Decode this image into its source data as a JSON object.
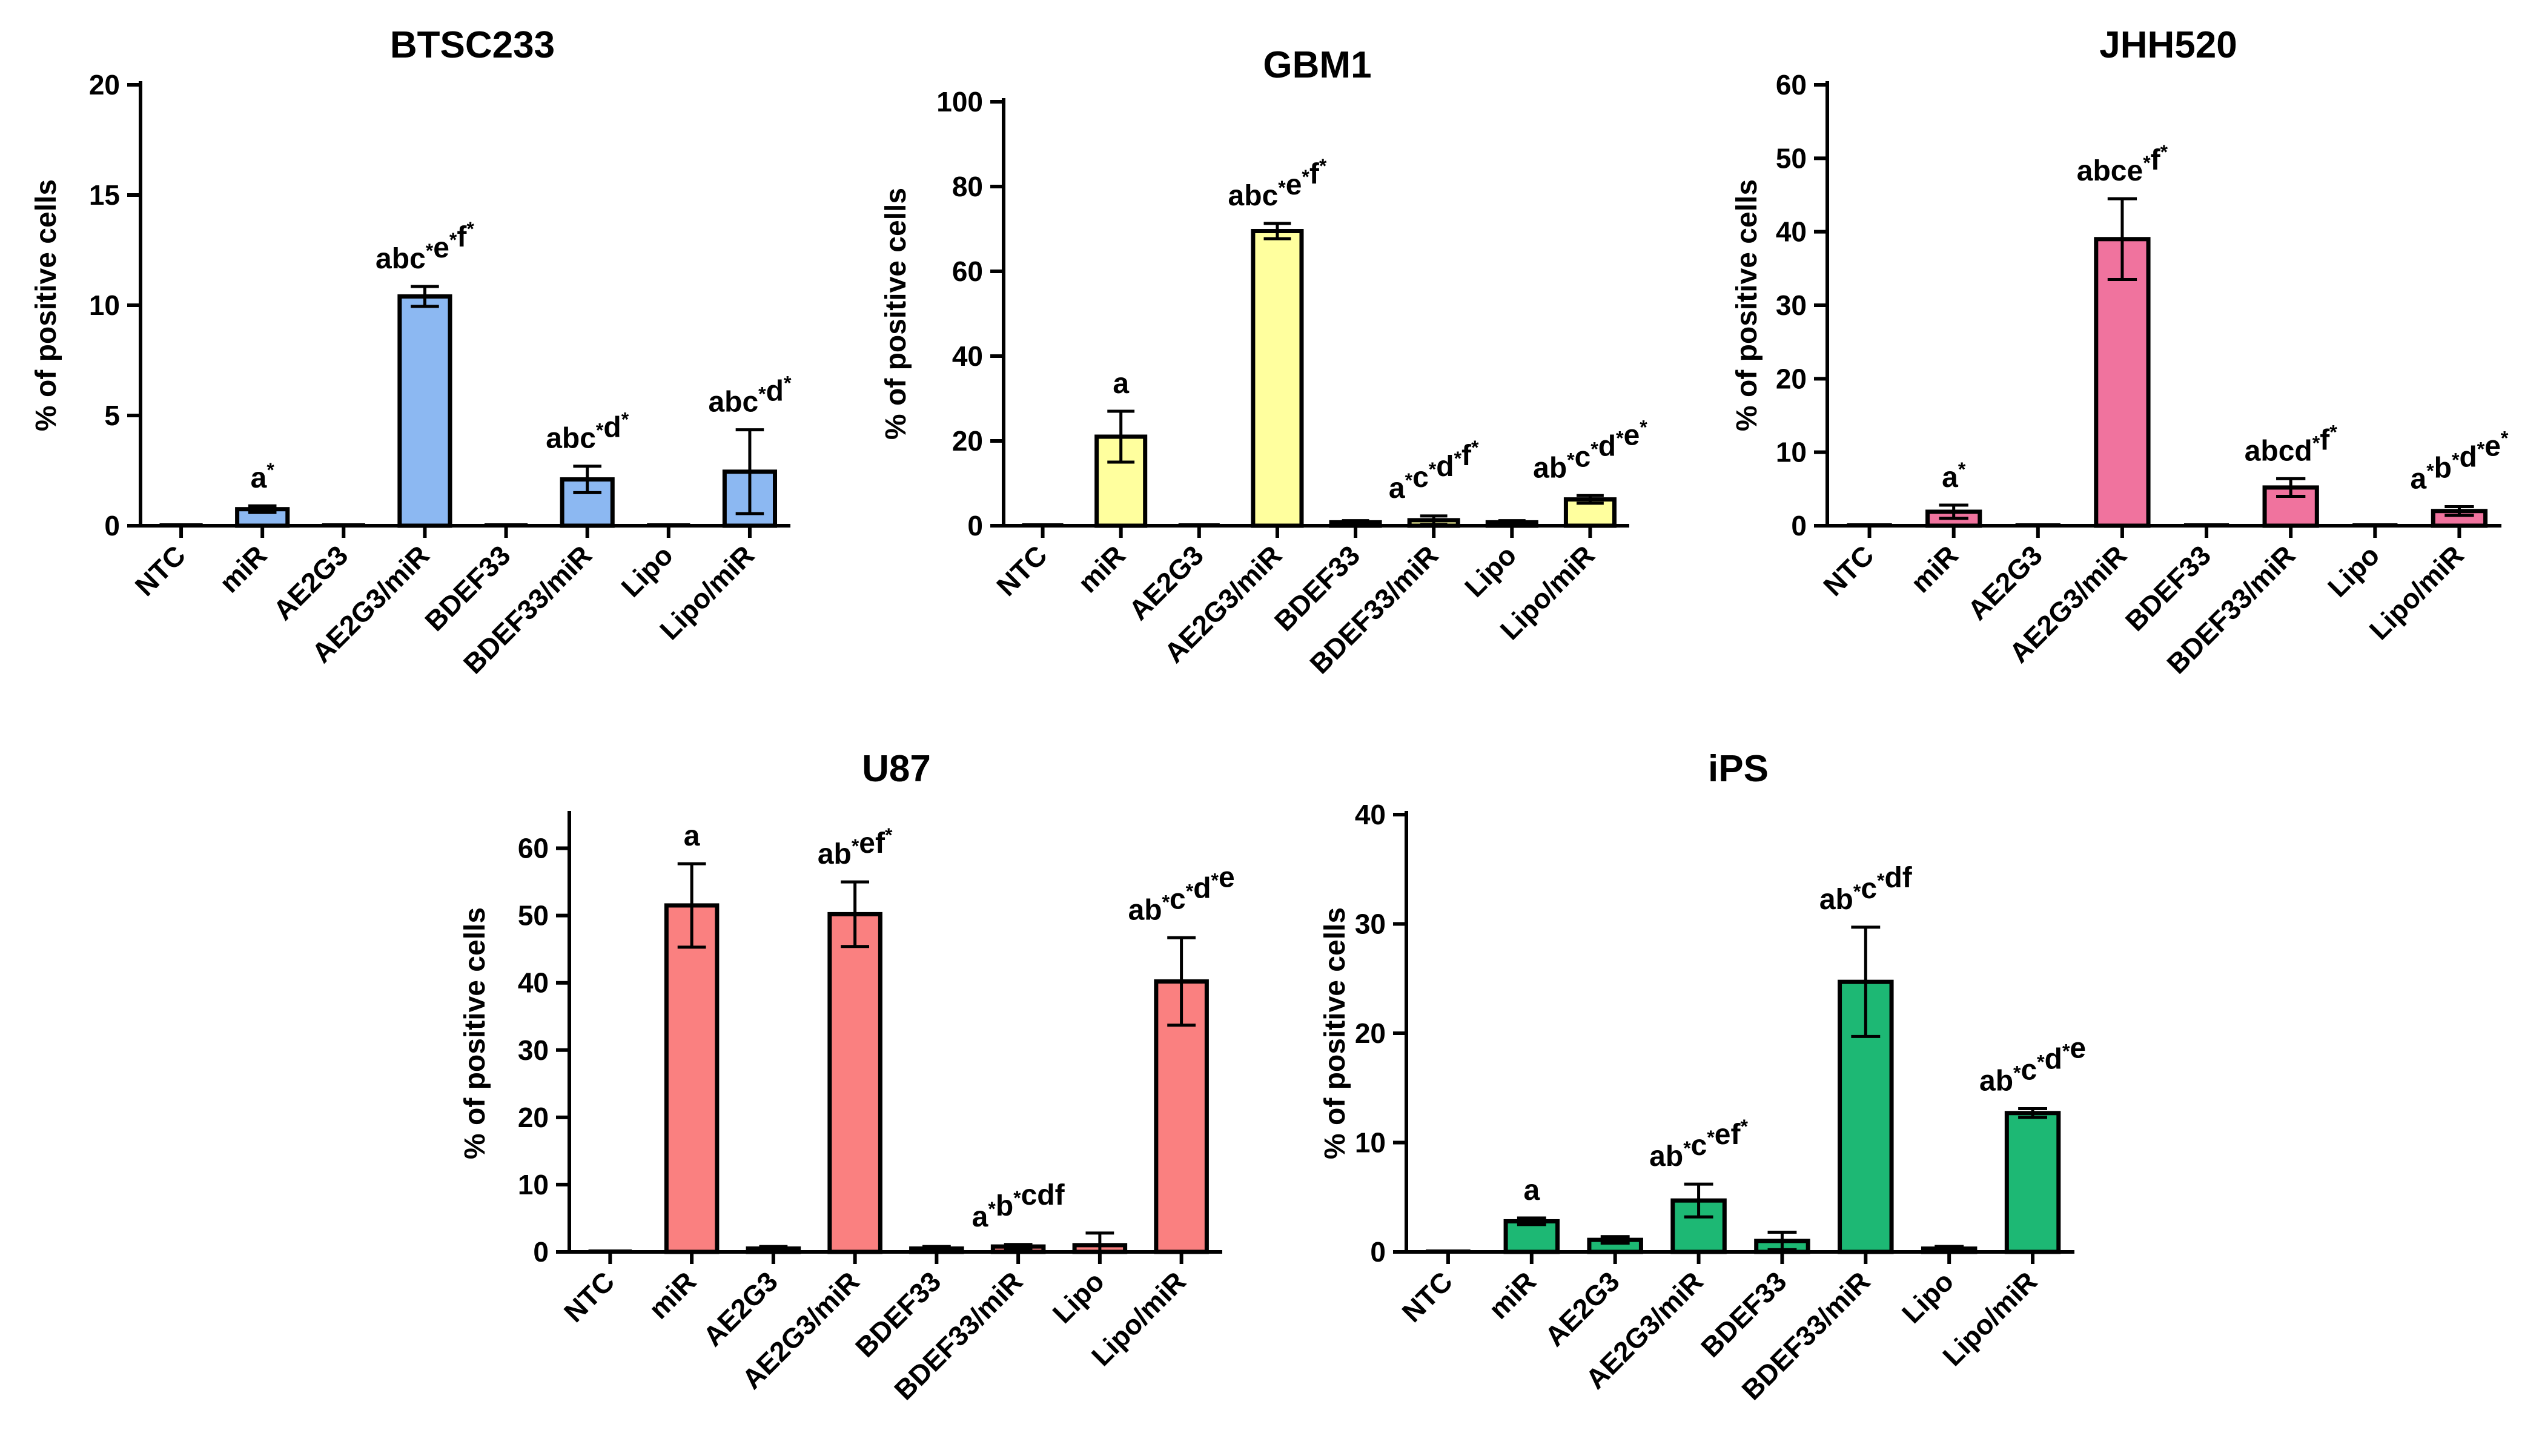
{
  "figure": {
    "categories": [
      "NTC",
      "miR",
      "AE2G3",
      "AE2G3/miR",
      "BDEF33",
      "BDEF33/miR",
      "Lipo",
      "Lipo/miR"
    ]
  },
  "chart_data": [
    {
      "type": "bar",
      "title": "BTSC233",
      "ylabel": "% of positive cells",
      "xlabel": "",
      "ylim": [
        0,
        20
      ],
      "yticks": [
        0,
        5,
        10,
        15,
        20
      ],
      "color": "#8CB8F2",
      "categories": [
        "NTC",
        "miR",
        "AE2G3",
        "AE2G3/miR",
        "BDEF33",
        "BDEF33/miR",
        "Lipo",
        "Lipo/miR"
      ],
      "values": [
        0,
        0.75,
        0,
        10.4,
        0,
        2.1,
        0,
        2.45
      ],
      "errors": [
        0,
        0.15,
        0,
        0.45,
        0,
        0.6,
        0,
        1.9
      ],
      "annotations": [
        "",
        "a*",
        "",
        "abc*e*f*",
        "",
        "abc*d*",
        "",
        "abc*d*"
      ]
    },
    {
      "type": "bar",
      "title": "GBM1",
      "ylabel": "% of positive cells",
      "xlabel": "",
      "ylim": [
        0,
        100
      ],
      "yticks": [
        0,
        20,
        40,
        60,
        80,
        100
      ],
      "color": "#FFFF9E",
      "categories": [
        "NTC",
        "miR",
        "AE2G3",
        "AE2G3/miR",
        "BDEF33",
        "BDEF33/miR",
        "Lipo",
        "Lipo/miR"
      ],
      "values": [
        0,
        21,
        0,
        69.5,
        0.8,
        1.3,
        0.8,
        6.2
      ],
      "errors": [
        0,
        6,
        0,
        1.8,
        0.4,
        1.0,
        0.4,
        0.9
      ],
      "annotations": [
        "",
        "a",
        "",
        "abc*e*f*",
        "",
        "a*c*d*f*",
        "",
        "ab*c*d*e*"
      ]
    },
    {
      "type": "bar",
      "title": "JHH520",
      "ylabel": "% of positive cells",
      "xlabel": "",
      "ylim": [
        0,
        60
      ],
      "yticks": [
        0,
        10,
        20,
        30,
        40,
        50,
        60
      ],
      "color": "#F0739E",
      "categories": [
        "NTC",
        "miR",
        "AE2G3",
        "AE2G3/miR",
        "BDEF33",
        "BDEF33/miR",
        "Lipo",
        "Lipo/miR"
      ],
      "values": [
        0,
        1.9,
        0,
        39,
        0,
        5.2,
        0,
        2.0
      ],
      "errors": [
        0,
        0.9,
        0,
        5.5,
        0,
        1.2,
        0,
        0.6
      ],
      "annotations": [
        "",
        "a*",
        "",
        "abce*f*",
        "",
        "abcd*f*",
        "",
        "a*b*d*e*"
      ]
    },
    {
      "type": "bar",
      "title": "U87",
      "ylabel": "% of positive cells",
      "xlabel": "",
      "ylim": [
        0,
        65
      ],
      "yticks": [
        0,
        10,
        20,
        30,
        40,
        50,
        60
      ],
      "color": "#FA8080",
      "categories": [
        "NTC",
        "miR",
        "AE2G3",
        "AE2G3/miR",
        "BDEF33",
        "BDEF33/miR",
        "Lipo",
        "Lipo/miR"
      ],
      "values": [
        0,
        51.5,
        0.5,
        50.2,
        0.5,
        0.8,
        1.0,
        40.2
      ],
      "errors": [
        0,
        6.2,
        0.3,
        4.8,
        0.3,
        0.3,
        1.8,
        6.5
      ],
      "annotations": [
        "",
        "a",
        "",
        "ab*ef*",
        "",
        "a*b*cdf",
        "",
        "ab*c*d*e"
      ]
    },
    {
      "type": "bar",
      "title": "iPS",
      "ylabel": "% of positive cells",
      "xlabel": "",
      "ylim": [
        0,
        40
      ],
      "yticks": [
        0,
        10,
        20,
        30,
        40
      ],
      "color": "#1DB874",
      "categories": [
        "NTC",
        "miR",
        "AE2G3",
        "AE2G3/miR",
        "BDEF33",
        "BDEF33/miR",
        "Lipo",
        "Lipo/miR"
      ],
      "values": [
        0,
        2.8,
        1.1,
        4.7,
        1.0,
        24.7,
        0.3,
        12.7
      ],
      "errors": [
        0,
        0.3,
        0.3,
        1.5,
        0.8,
        5.0,
        0.2,
        0.4
      ],
      "annotations": [
        "",
        "a",
        "",
        "ab*c*ef*",
        "",
        "ab*c*df",
        "",
        "ab*c*d*e"
      ]
    }
  ]
}
